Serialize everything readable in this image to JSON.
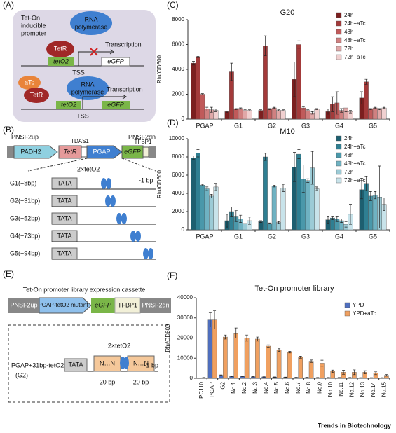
{
  "panels": {
    "a": {
      "label": "(A)",
      "promoter": [
        "Tet-On",
        "inducible",
        "promoter"
      ],
      "rnap_top": [
        "RNA",
        "polymerase"
      ],
      "tetr_top": "TetR",
      "teto_top": "tetO2",
      "egfp_top": "eGFP",
      "transcription_top": "Transcription",
      "tss_top": "TSS",
      "atc": "aTc",
      "tetr_bottom": "TetR",
      "rnap_bottom": [
        "RNA",
        "polymerase"
      ],
      "transcription_bottom": "Transcription",
      "teto_bottom": "tetO2",
      "egfp_bottom": "eGFP",
      "tss_bottom": "TSS"
    },
    "b": {
      "label": "(B)",
      "up": "PNSI-2up",
      "padh2": "PADH2",
      "tetr": "TetR",
      "tdas1": "TDAS1",
      "pgap": "PGAP",
      "egfp": "eGFP",
      "tfbp1": "TFBP1",
      "dn": "PNSI-2dn",
      "teto": "2×tetO2",
      "end": "-1 bp",
      "rows": [
        {
          "name": "G1(+8bp)",
          "box": "TATA"
        },
        {
          "name": "G2(+31bp)",
          "box": "TATA"
        },
        {
          "name": "G3(+52bp)",
          "box": "TATA"
        },
        {
          "name": "G4(+73bp)",
          "box": "TATA"
        },
        {
          "name": "G5(+94bp)",
          "box": "TATA"
        }
      ]
    },
    "e": {
      "label": "(E)",
      "title": "Tet-On promoter library expression cassette",
      "up": "PNSI-2up",
      "mutant": "PGAP-tetO2 mutant",
      "egfp": "eGFP",
      "tfbp1": "TFBP1",
      "dn": "PNSI-2dn",
      "promoter": "PGAP+31bp-tetO2",
      "g2": "(G2)",
      "tata": "TATA",
      "n1": "N…N",
      "n2": "N…N",
      "teto": "2×tetO2",
      "bp1": "20 bp",
      "bp2": "20 bp",
      "end": "-1 bp"
    },
    "footer": "Trends in Biotechnology"
  },
  "chart_data": [
    {
      "type": "bar",
      "label": "(C)",
      "title": "G20",
      "y_label": "Rfu/OD600",
      "categories": [
        "PGAP",
        "G1",
        "G2",
        "G3",
        "G4",
        "G5"
      ],
      "ylim": [
        0,
        8000
      ],
      "yticks": [
        0,
        2000,
        4000,
        6000,
        8000
      ],
      "legend": "top-right",
      "series": [
        {
          "name": "24h",
          "color": "#7b1f1f",
          "values": [
            4500,
            600,
            700,
            3200,
            600,
            1700
          ],
          "errors": [
            150,
            50,
            50,
            1400,
            200,
            500
          ]
        },
        {
          "name": "24h+aTc",
          "color": "#a33a3a",
          "values": [
            5000,
            3800,
            5900,
            6000,
            1200,
            3000
          ],
          "errors": [
            50,
            700,
            800,
            300,
            600,
            200
          ]
        },
        {
          "name": "48h",
          "color": "#c05a5a",
          "values": [
            2000,
            800,
            800,
            900,
            1300,
            800
          ],
          "errors": [
            50,
            50,
            50,
            100,
            900,
            50
          ]
        },
        {
          "name": "48h+aTc",
          "color": "#d08080",
          "values": [
            800,
            850,
            900,
            700,
            700,
            900
          ],
          "errors": [
            150,
            50,
            50,
            50,
            150,
            50
          ]
        },
        {
          "name": "72h",
          "color": "#e0a8a8",
          "values": [
            750,
            700,
            700,
            500,
            900,
            800
          ],
          "errors": [
            200,
            50,
            50,
            100,
            300,
            50
          ]
        },
        {
          "name": "72h+aTc",
          "color": "#f0d0d0",
          "values": [
            700,
            700,
            700,
            800,
            600,
            900
          ],
          "errors": [
            100,
            50,
            50,
            50,
            100,
            50
          ]
        }
      ]
    },
    {
      "type": "bar",
      "label": "(D)",
      "title": "M10",
      "y_label": "Rfu/OD600",
      "categories": [
        "PGAP",
        "G1",
        "G2",
        "G3",
        "G4",
        "G5"
      ],
      "ylim": [
        0,
        10000
      ],
      "yticks": [
        0,
        2000,
        4000,
        6000,
        8000,
        10000
      ],
      "legend": "top-right",
      "series": [
        {
          "name": "24h",
          "color": "#1d5f70",
          "values": [
            7900,
            1000,
            900,
            6900,
            1100,
            4400
          ],
          "errors": [
            200,
            700,
            100,
            1600,
            400,
            1000
          ]
        },
        {
          "name": "24h+aTc",
          "color": "#2f7f92",
          "values": [
            8400,
            2000,
            8000,
            8300,
            1300,
            5100
          ],
          "errors": [
            400,
            500,
            400,
            500,
            200,
            800
          ]
        },
        {
          "name": "48h",
          "color": "#4a98aa",
          "values": [
            4900,
            1500,
            700,
            5600,
            1200,
            3700
          ],
          "errors": [
            100,
            600,
            50,
            1500,
            300,
            500
          ]
        },
        {
          "name": "48h+aTc",
          "color": "#6fb2c2",
          "values": [
            4500,
            1200,
            4800,
            5400,
            1000,
            3800
          ],
          "errors": [
            200,
            400,
            100,
            200,
            200,
            400
          ]
        },
        {
          "name": "72h",
          "color": "#9ccbd6",
          "values": [
            3700,
            700,
            800,
            6800,
            600,
            3600
          ],
          "errors": [
            200,
            500,
            100,
            1800,
            300,
            3400
          ]
        },
        {
          "name": "72h+aTc",
          "color": "#c8e3ea",
          "values": [
            4700,
            1000,
            4600,
            4500,
            1700,
            2800
          ],
          "errors": [
            400,
            400,
            400,
            200,
            1100,
            700
          ]
        }
      ]
    },
    {
      "type": "bar",
      "label": "(F)",
      "title": "Tet-On promoter library",
      "y_label": "Rfu/OD600",
      "categories": [
        "PC110",
        "PGAP",
        "G2",
        "No.1",
        "No.2",
        "No.3",
        "No.4",
        "No.5",
        "No.6",
        "No.7",
        "No.8",
        "No.9",
        "No.10",
        "No.11",
        "No.12",
        "No.13",
        "No.14",
        "No.15"
      ],
      "ylim": [
        0,
        40000
      ],
      "yticks": [
        0,
        10000,
        20000,
        30000,
        40000
      ],
      "legend": "top-right",
      "series": [
        {
          "name": "YPD",
          "color": "#4f6fc0",
          "values": [
            100,
            29000,
            1500,
            1000,
            1000,
            800,
            700,
            600,
            500,
            400,
            400,
            300,
            300,
            300,
            300,
            200,
            200,
            200
          ],
          "errors": [
            50,
            3500,
            200,
            200,
            200,
            100,
            100,
            100,
            100,
            100,
            100,
            100,
            100,
            100,
            100,
            100,
            100,
            100
          ]
        },
        {
          "name": "YPD+aTc",
          "color": "#f0a060",
          "values": [
            300,
            29000,
            20500,
            22500,
            20000,
            19500,
            16000,
            14000,
            13000,
            10500,
            8500,
            7500,
            3500,
            3000,
            3000,
            3000,
            2500,
            1500
          ],
          "errors": [
            100,
            4500,
            1000,
            2500,
            1500,
            1000,
            600,
            700,
            400,
            500,
            600,
            1500,
            600,
            1000,
            1200,
            800,
            700,
            400
          ]
        }
      ]
    }
  ]
}
